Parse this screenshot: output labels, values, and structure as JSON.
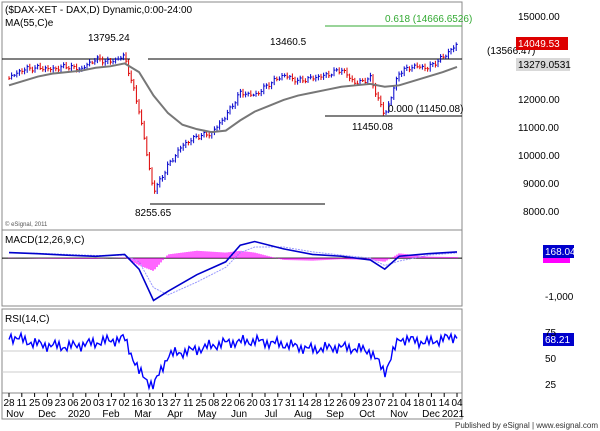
{
  "header": {
    "symbol_title": "($DAX-XET - DAX,D) Dynamic,0:00-24:00",
    "ma_label": "MA(55,C)e"
  },
  "price_panel": {
    "copyright": "© eSignal, 2011",
    "last_price": "14049.53",
    "ma_value": "13279.0531",
    "fib_label": "0.618 (14666.6526)",
    "fib0_label": "0.000 (11450.08)",
    "resistance_label": "(13566.47)",
    "annotations": {
      "peak_feb": "13795.24",
      "peak_sep": "13460.5",
      "low_oct": "11450.08",
      "low_mar": "8255.65"
    },
    "y_ticks": [
      "15000.00",
      "14000.00",
      "13000.00",
      "12000.00",
      "11000.00",
      "10000.00",
      "9000.00",
      "8000.00"
    ]
  },
  "macd_panel": {
    "label": "MACD(12,26,9,C)",
    "value_box": "168.04",
    "y_ticks": [
      "-1,000"
    ]
  },
  "rsi_panel": {
    "label": "RSI(14,C)",
    "value_box": "68.21",
    "y_ticks": [
      "75",
      "50",
      "25"
    ]
  },
  "x_axis": {
    "day_labels": [
      "28",
      "11",
      "25",
      "09",
      "23",
      "06",
      "20",
      "03",
      "17",
      "02",
      "16",
      "30",
      "13",
      "27",
      "11",
      "25",
      "08",
      "22",
      "06",
      "20",
      "03",
      "17",
      "31",
      "14",
      "28",
      "12",
      "26",
      "09",
      "23",
      "07",
      "21",
      "04",
      "18",
      "01",
      "14",
      "04"
    ],
    "month_labels": [
      "Nov",
      "Dec",
      "2020",
      "Feb",
      "Mar",
      "Apr",
      "May",
      "Jun",
      "Jul",
      "Aug",
      "Sep",
      "Oct",
      "Nov",
      "Dec",
      "2021"
    ]
  },
  "footer": {
    "published": "Published by eSignal | www.esignal.com"
  },
  "colors": {
    "price_up": "#0000cc",
    "price_down": "#dd0000",
    "ma": "#777777",
    "macd": "#0000cc",
    "signal": "#9999ff",
    "histogram": "#ff00ff",
    "rsi": "#0000ff",
    "fib": "#33aa33",
    "value_box": "#0000cc"
  },
  "chart_data": [
    {
      "type": "line",
      "title": "($DAX-XET - DAX,D) Dynamic,0:00-24:00",
      "x": [
        "2019-10-28",
        "2019-11-11",
        "2019-11-25",
        "2019-12-09",
        "2019-12-23",
        "2020-01-06",
        "2020-01-20",
        "2020-02-03",
        "2020-02-17",
        "2020-03-02",
        "2020-03-16",
        "2020-03-30",
        "2020-04-13",
        "2020-04-27",
        "2020-05-11",
        "2020-05-25",
        "2020-06-08",
        "2020-06-22",
        "2020-07-06",
        "2020-07-20",
        "2020-08-03",
        "2020-08-17",
        "2020-08-31",
        "2020-09-14",
        "2020-09-28",
        "2020-10-12",
        "2020-10-26",
        "2020-11-09",
        "2020-11-23",
        "2020-12-07",
        "2020-12-21",
        "2021-01-04"
      ],
      "series": [
        {
          "name": "DAX",
          "values": [
            12900,
            13200,
            13250,
            13200,
            13300,
            13200,
            13550,
            13450,
            13650,
            11800,
            9000,
            9900,
            10600,
            10900,
            11000,
            11600,
            12400,
            12300,
            12700,
            13000,
            12800,
            12900,
            13000,
            13200,
            12700,
            12900,
            11600,
            13100,
            13300,
            13250,
            13600,
            14049.53
          ]
        },
        {
          "name": "MA(55,C)e",
          "values": [
            12650,
            12800,
            12950,
            13050,
            13100,
            13150,
            13250,
            13300,
            13400,
            13100,
            12300,
            11700,
            11300,
            11150,
            11050,
            11100,
            11450,
            11750,
            11950,
            12150,
            12300,
            12400,
            12500,
            12600,
            12650,
            12700,
            12600,
            12650,
            12800,
            12950,
            13100,
            13279.05
          ]
        }
      ],
      "ylim": [
        7700,
        15500
      ],
      "levels": [
        14666.6526,
        13566.47,
        11450.08,
        8255.65
      ],
      "annotations": [
        {
          "text": "13795.24",
          "x": "2020-02-17",
          "y": 13795.24
        },
        {
          "text": "13460.5",
          "x": "2020-09-01",
          "y": 13460.5
        },
        {
          "text": "11450.08",
          "x": "2020-10-30",
          "y": 11450.08
        },
        {
          "text": "8255.65",
          "x": "2020-03-18",
          "y": 8255.65
        }
      ],
      "grid": false
    },
    {
      "type": "line",
      "title": "MACD(12,26,9,C)",
      "x": [
        "2019-10-28",
        "2019-11-25",
        "2019-12-23",
        "2020-01-20",
        "2020-02-17",
        "2020-03-02",
        "2020-03-16",
        "2020-03-30",
        "2020-04-27",
        "2020-05-25",
        "2020-06-08",
        "2020-06-22",
        "2020-07-20",
        "2020-08-17",
        "2020-09-14",
        "2020-10-12",
        "2020-10-26",
        "2020-11-09",
        "2020-12-07",
        "2021-01-04"
      ],
      "series": [
        {
          "name": "MACD",
          "values": [
            150,
            120,
            80,
            50,
            100,
            -300,
            -1150,
            -900,
            -450,
            -100,
            350,
            450,
            250,
            100,
            50,
            -50,
            -300,
            50,
            120,
            168.04
          ]
        },
        {
          "name": "Signal",
          "values": [
            140,
            130,
            100,
            70,
            80,
            -100,
            -800,
            -1000,
            -650,
            -250,
            150,
            300,
            300,
            170,
            80,
            0,
            -200,
            -80,
            80,
            140
          ]
        }
      ],
      "histogram": [
        10,
        -10,
        -20,
        -20,
        20,
        -200,
        -350,
        100,
        200,
        150,
        200,
        150,
        -50,
        -70,
        -30,
        -50,
        -100,
        130,
        40,
        28
      ],
      "ylim": [
        -1300,
        600
      ]
    },
    {
      "type": "line",
      "title": "RSI(14,C)",
      "x": [
        "2019-10-28",
        "2019-11-25",
        "2019-12-23",
        "2020-01-20",
        "2020-02-17",
        "2020-03-02",
        "2020-03-16",
        "2020-03-30",
        "2020-04-27",
        "2020-05-25",
        "2020-06-22",
        "2020-07-20",
        "2020-08-17",
        "2020-09-14",
        "2020-10-12",
        "2020-10-26",
        "2020-11-09",
        "2020-12-07",
        "2021-01-04"
      ],
      "series": [
        {
          "name": "RSI",
          "values": [
            68,
            58,
            55,
            60,
            65,
            25,
            8,
            45,
            52,
            60,
            62,
            58,
            52,
            55,
            50,
            25,
            65,
            60,
            68.21
          ]
        }
      ],
      "ylim": [
        0,
        100
      ],
      "ticks": [
        25,
        50,
        75
      ]
    }
  ]
}
